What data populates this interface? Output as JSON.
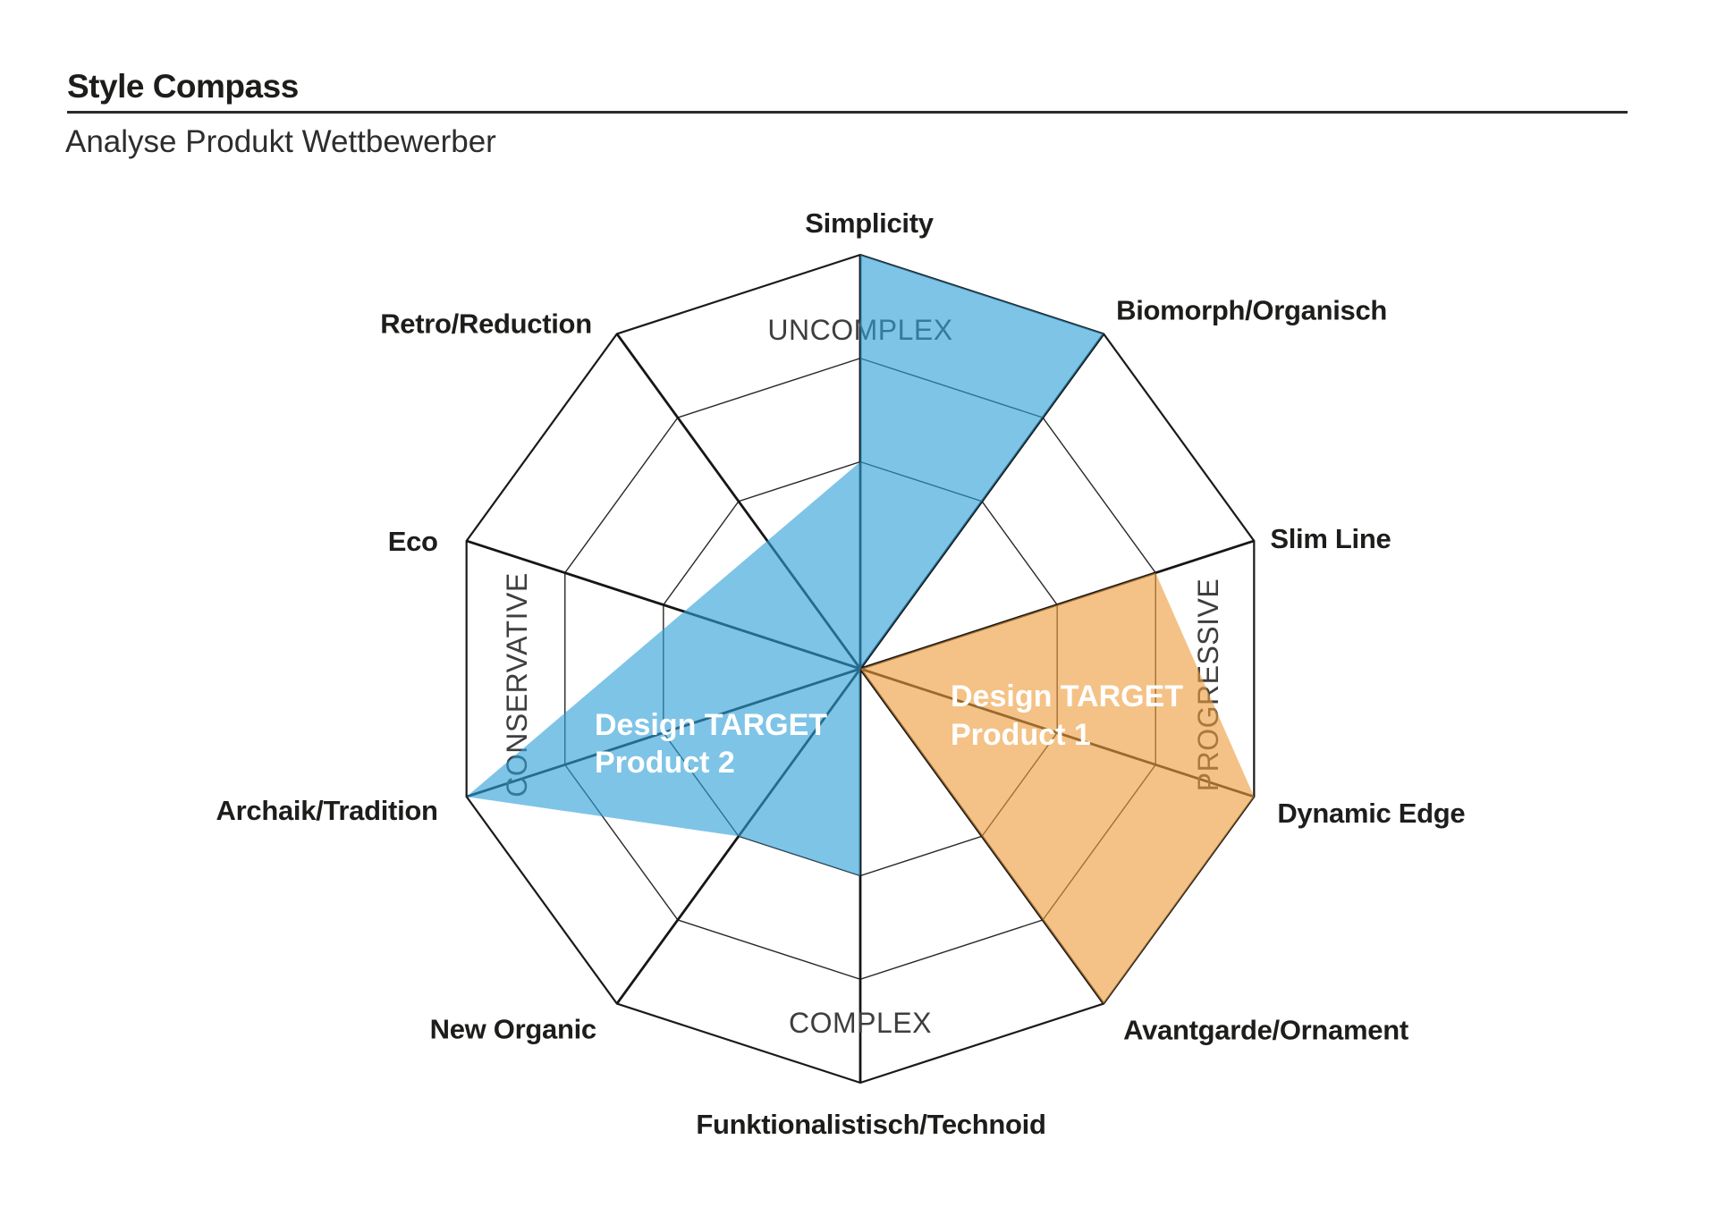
{
  "header": {
    "title": "Style Compass",
    "subtitle": "Analyse Produkt Wettbewerber"
  },
  "chart_data": {
    "type": "radar",
    "title": "Style Compass",
    "subtitle": "Analyse Produkt Wettbewerber",
    "axes": [
      "Simplicity",
      "Biomorph/Organisch",
      "Slim Line",
      "Dynamic Edge",
      "Avantgarde/Ornament",
      "Funktionalistisch/Technoid",
      "New Organic",
      "Archaik/Tradition",
      "Eco",
      "Retro/Reduction"
    ],
    "ring_levels": [
      0.5,
      0.75,
      1.0
    ],
    "grid_on": true,
    "grid_color": "#1a1a1a",
    "compass_labels": {
      "top": "UNCOMPLEX",
      "right": "PROGRESSIVE",
      "bottom": "COMPLEX",
      "left": "CONSERVATIVE"
    },
    "regions": [
      {
        "id": "product2",
        "label_lines": [
          "Design TARGET",
          "Product 2"
        ],
        "color": "#2F9FD8",
        "fill_alpha": 0.62,
        "vertices": [
          {
            "axis": "Simplicity",
            "r": 1.0
          },
          {
            "axis": "Biomorph/Organisch",
            "r": 1.0
          },
          {
            "axis": "Biomorph/Organisch",
            "r": 0.0
          },
          {
            "axis": "Funktionalistisch/Technoid",
            "r": 0.5
          },
          {
            "axis": "New Organic",
            "r": 0.5
          },
          {
            "axis": "Archaik/Tradition",
            "r": 1.0
          },
          {
            "axis": "Simplicity",
            "r": 0.5
          }
        ]
      },
      {
        "id": "product1",
        "label_lines": [
          "Design TARGET",
          "Product 1"
        ],
        "color": "#ED9C3C",
        "fill_alpha": 0.62,
        "vertices": [
          {
            "axis": "Slim Line",
            "r": 0.0
          },
          {
            "axis": "Slim Line",
            "r": 0.75
          },
          {
            "axis": "Dynamic Edge",
            "r": 1.0
          },
          {
            "axis": "Avantgarde/Ornament",
            "r": 1.0
          }
        ]
      }
    ]
  }
}
